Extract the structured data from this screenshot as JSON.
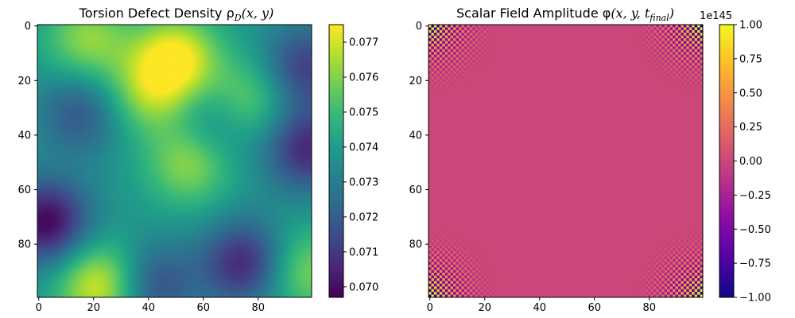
{
  "chart_data": [
    {
      "type": "heatmap",
      "title": "Torsion Defect Density ρ",
      "title_sub": "D",
      "title_args": "(x, y)",
      "x_ticks": [
        "0",
        "20",
        "40",
        "60",
        "80"
      ],
      "y_ticks": [
        "0",
        "20",
        "40",
        "60",
        "80"
      ],
      "x_range": [
        0,
        99
      ],
      "y_range": [
        0,
        99
      ],
      "grid_size": [
        100,
        100
      ],
      "colormap": "viridis",
      "colorbar_range": [
        0.0697,
        0.0775
      ],
      "colorbar_ticks": [
        "0.070",
        "0.071",
        "0.072",
        "0.073",
        "0.074",
        "0.075",
        "0.076",
        "0.077"
      ],
      "field_description": "smooth random field",
      "features": {
        "maxima": [
          {
            "x": 50,
            "y": 12,
            "value": 0.0775
          },
          {
            "x": 22,
            "y": 95,
            "value": 0.0772
          },
          {
            "x": 55,
            "y": 50,
            "value": 0.0763
          },
          {
            "x": 18,
            "y": 5,
            "value": 0.0762
          },
          {
            "x": 40,
            "y": 25,
            "value": 0.076
          },
          {
            "x": 75,
            "y": 28,
            "value": 0.0762
          },
          {
            "x": 97,
            "y": 90,
            "value": 0.076
          }
        ],
        "minima": [
          {
            "x": 3,
            "y": 72,
            "value": 0.0698
          },
          {
            "x": 75,
            "y": 87,
            "value": 0.0705
          },
          {
            "x": 98,
            "y": 45,
            "value": 0.0706
          },
          {
            "x": 97,
            "y": 15,
            "value": 0.0712
          },
          {
            "x": 15,
            "y": 32,
            "value": 0.0718
          },
          {
            "x": 42,
            "y": 95,
            "value": 0.0715
          },
          {
            "x": 65,
            "y": 35,
            "value": 0.072
          }
        ],
        "mean": 0.0738
      }
    },
    {
      "type": "heatmap",
      "title": "Scalar Field Amplitude φ",
      "title_args": "(x, y, t",
      "title_sub": "final",
      "title_close": ")",
      "x_ticks": [
        "0",
        "20",
        "40",
        "60",
        "80"
      ],
      "y_ticks": [
        "0",
        "20",
        "40",
        "60",
        "80"
      ],
      "x_range": [
        0,
        99
      ],
      "y_range": [
        0,
        99
      ],
      "grid_size": [
        100,
        100
      ],
      "colormap": "plasma",
      "colorbar_range": [
        -1.0,
        1.0
      ],
      "colorbar_ticks": [
        "1.00",
        "0.75",
        "0.50",
        "0.25",
        "0.00",
        "−0.25",
        "−0.50",
        "−0.75",
        "−1.00"
      ],
      "colorbar_offset_label": "1e145",
      "field_description": "approximately 0 everywhere except alternating ±1 checkerboard in the four corners",
      "corner_radius_cells": 25,
      "interior_value": 0.0
    }
  ]
}
